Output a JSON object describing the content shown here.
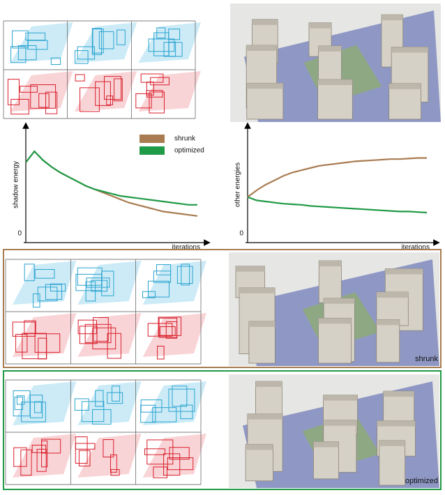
{
  "chart_data": [
    {
      "type": "line",
      "y_label": "shadow energy",
      "x_label": "iterations",
      "x": [
        0,
        1,
        2,
        3,
        4,
        5,
        6,
        7,
        8,
        9,
        10,
        11,
        12,
        13,
        14,
        15,
        16,
        17,
        18,
        19,
        20
      ],
      "xlim": [
        0,
        20
      ],
      "ylim": [
        0,
        100
      ],
      "yticks": [
        0
      ],
      "legend": "top-right",
      "series": [
        {
          "name": "shrunk",
          "color": "#a87b50",
          "values": [
            70,
            80,
            72,
            66,
            61,
            57,
            53,
            49,
            46,
            43,
            40,
            37,
            34,
            32,
            30,
            28,
            26,
            25,
            24,
            23,
            22
          ]
        },
        {
          "name": "optimized",
          "color": "#1f9a46",
          "values": [
            70,
            80,
            72,
            66,
            61,
            57,
            53,
            49,
            46,
            44,
            42,
            40,
            39,
            38,
            37,
            36,
            35,
            34,
            33,
            32,
            32
          ]
        }
      ]
    },
    {
      "type": "line",
      "y_label": "other energies",
      "x_label": "iterations",
      "x": [
        0,
        1,
        2,
        3,
        4,
        5,
        6,
        7,
        8,
        9,
        10,
        11,
        12,
        13,
        14,
        15,
        16,
        17,
        18,
        19,
        20
      ],
      "xlim": [
        0,
        20
      ],
      "ylim": [
        0,
        100
      ],
      "yticks": [
        0
      ],
      "series": [
        {
          "color": "#a87b50",
          "values": [
            39,
            45,
            50,
            54,
            58,
            61,
            63,
            65,
            67,
            68,
            69,
            70,
            71,
            71.5,
            72,
            72.5,
            73,
            73,
            73.5,
            74,
            74
          ]
        },
        {
          "color": "#1f9a46",
          "values": [
            39,
            36,
            35,
            34,
            33,
            32.5,
            32,
            31,
            30.5,
            30,
            29.5,
            29,
            28.5,
            28,
            27.5,
            27,
            26.5,
            26,
            26,
            25.5,
            25
          ]
        }
      ]
    }
  ],
  "panels": [
    {
      "label": "shrunk"
    },
    {
      "label": "optimized"
    }
  ]
}
